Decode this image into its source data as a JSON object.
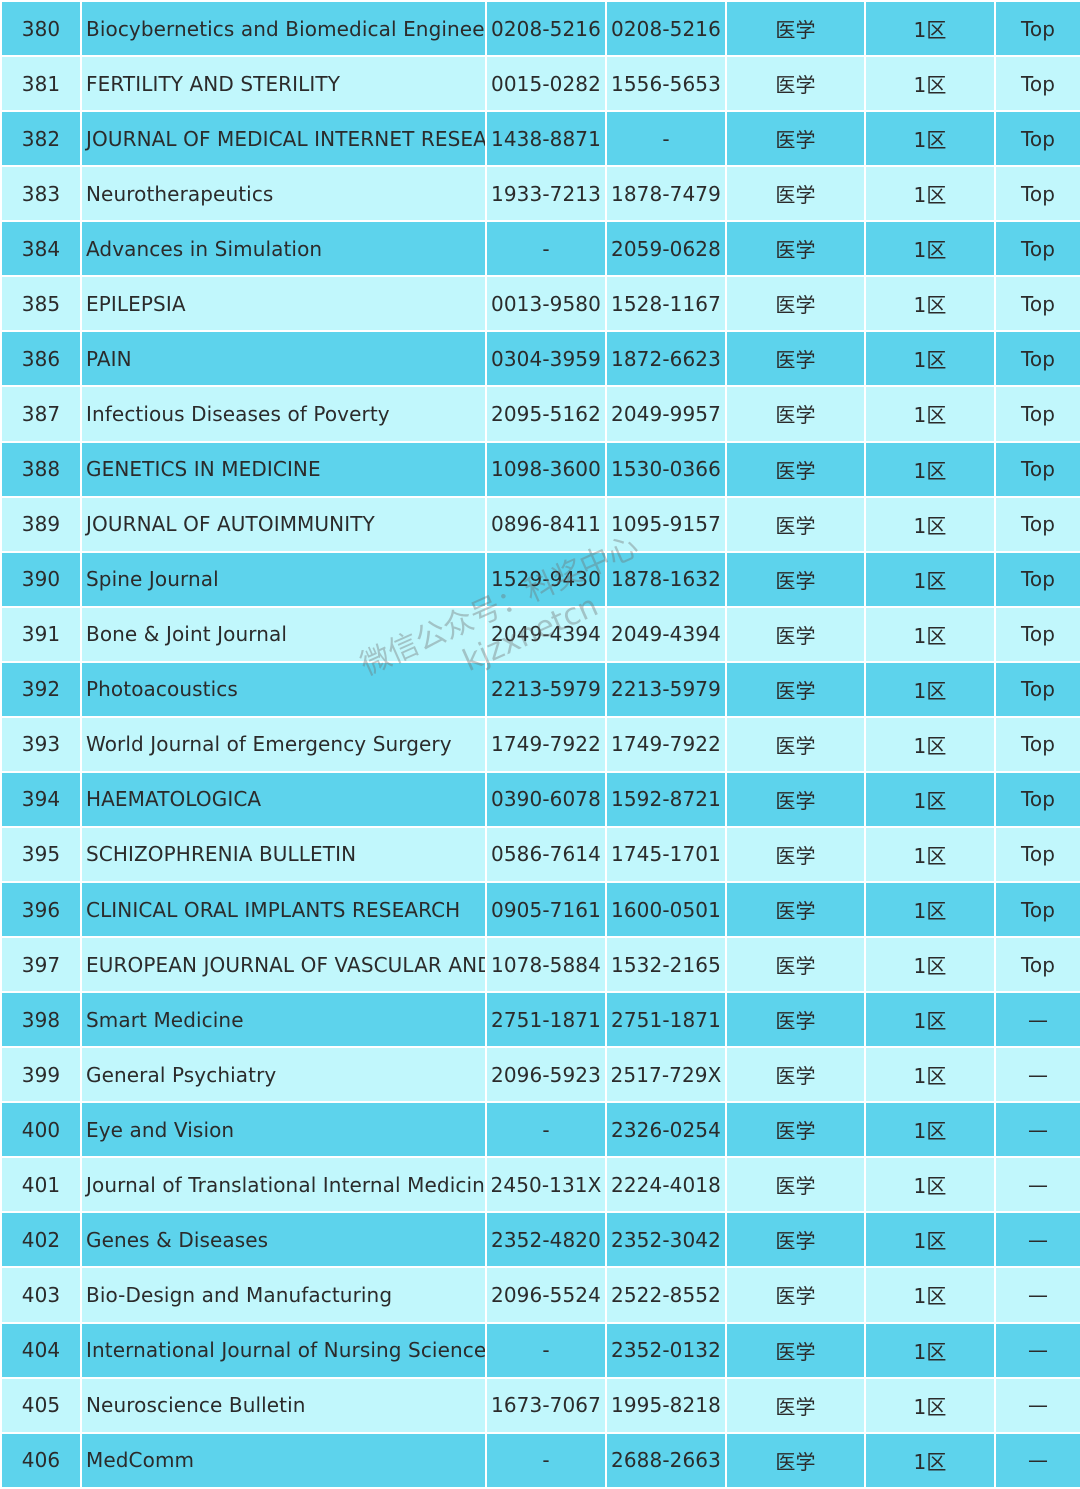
{
  "rows": [
    {
      "no": "380",
      "name": "Biocybernetics and Biomedical Engineering",
      "issn": "0208-5216",
      "eissn": "0208-5216",
      "category": "医学",
      "zone": "1区",
      "top": "Top"
    },
    {
      "no": "381",
      "name": "FERTILITY AND STERILITY",
      "issn": "0015-0282",
      "eissn": "1556-5653",
      "category": "医学",
      "zone": "1区",
      "top": "Top"
    },
    {
      "no": "382",
      "name": "JOURNAL OF MEDICAL INTERNET RESEARCH",
      "issn": "1438-8871",
      "eissn": "-",
      "category": "医学",
      "zone": "1区",
      "top": "Top"
    },
    {
      "no": "383",
      "name": "Neurotherapeutics",
      "issn": "1933-7213",
      "eissn": "1878-7479",
      "category": "医学",
      "zone": "1区",
      "top": "Top"
    },
    {
      "no": "384",
      "name": "Advances in Simulation",
      "issn": "-",
      "eissn": "2059-0628",
      "category": "医学",
      "zone": "1区",
      "top": "Top"
    },
    {
      "no": "385",
      "name": "EPILEPSIA",
      "issn": "0013-9580",
      "eissn": "1528-1167",
      "category": "医学",
      "zone": "1区",
      "top": "Top"
    },
    {
      "no": "386",
      "name": "PAIN",
      "issn": "0304-3959",
      "eissn": "1872-6623",
      "category": "医学",
      "zone": "1区",
      "top": "Top"
    },
    {
      "no": "387",
      "name": "Infectious Diseases of Poverty",
      "issn": "2095-5162",
      "eissn": "2049-9957",
      "category": "医学",
      "zone": "1区",
      "top": "Top"
    },
    {
      "no": "388",
      "name": "GENETICS IN MEDICINE",
      "issn": "1098-3600",
      "eissn": "1530-0366",
      "category": "医学",
      "zone": "1区",
      "top": "Top"
    },
    {
      "no": "389",
      "name": "JOURNAL OF AUTOIMMUNITY",
      "issn": "0896-8411",
      "eissn": "1095-9157",
      "category": "医学",
      "zone": "1区",
      "top": "Top"
    },
    {
      "no": "390",
      "name": "Spine Journal",
      "issn": "1529-9430",
      "eissn": "1878-1632",
      "category": "医学",
      "zone": "1区",
      "top": "Top"
    },
    {
      "no": "391",
      "name": "Bone & Joint Journal",
      "issn": "2049-4394",
      "eissn": "2049-4394",
      "category": "医学",
      "zone": "1区",
      "top": "Top"
    },
    {
      "no": "392",
      "name": "Photoacoustics",
      "issn": "2213-5979",
      "eissn": "2213-5979",
      "category": "医学",
      "zone": "1区",
      "top": "Top"
    },
    {
      "no": "393",
      "name": "World Journal of Emergency Surgery",
      "issn": "1749-7922",
      "eissn": "1749-7922",
      "category": "医学",
      "zone": "1区",
      "top": "Top"
    },
    {
      "no": "394",
      "name": "HAEMATOLOGICA",
      "issn": "0390-6078",
      "eissn": "1592-8721",
      "category": "医学",
      "zone": "1区",
      "top": "Top"
    },
    {
      "no": "395",
      "name": "SCHIZOPHRENIA BULLETIN",
      "issn": "0586-7614",
      "eissn": "1745-1701",
      "category": "医学",
      "zone": "1区",
      "top": "Top"
    },
    {
      "no": "396",
      "name": "CLINICAL ORAL IMPLANTS RESEARCH",
      "issn": "0905-7161",
      "eissn": "1600-0501",
      "category": "医学",
      "zone": "1区",
      "top": "Top"
    },
    {
      "no": "397",
      "name": "EUROPEAN JOURNAL OF VASCULAR AND ENDOVASCULAR SURGERY",
      "issn": "1078-5884",
      "eissn": "1532-2165",
      "category": "医学",
      "zone": "1区",
      "top": "Top"
    },
    {
      "no": "398",
      "name": "Smart Medicine",
      "issn": "2751-1871",
      "eissn": "2751-1871",
      "category": "医学",
      "zone": "1区",
      "top": "—"
    },
    {
      "no": "399",
      "name": "General Psychiatry",
      "issn": "2096-5923",
      "eissn": "2517-729X",
      "category": "医学",
      "zone": "1区",
      "top": "—"
    },
    {
      "no": "400",
      "name": "Eye and Vision",
      "issn": "-",
      "eissn": "2326-0254",
      "category": "医学",
      "zone": "1区",
      "top": "—"
    },
    {
      "no": "401",
      "name": "Journal of Translational Internal Medicine",
      "issn": "2450-131X",
      "eissn": "2224-4018",
      "category": "医学",
      "zone": "1区",
      "top": "—"
    },
    {
      "no": "402",
      "name": "Genes & Diseases",
      "issn": "2352-4820",
      "eissn": "2352-3042",
      "category": "医学",
      "zone": "1区",
      "top": "—"
    },
    {
      "no": "403",
      "name": "Bio-Design and Manufacturing",
      "issn": "2096-5524",
      "eissn": "2522-8552",
      "category": "医学",
      "zone": "1区",
      "top": "—"
    },
    {
      "no": "404",
      "name": "International Journal of Nursing Sciences",
      "issn": "-",
      "eissn": "2352-0132",
      "category": "医学",
      "zone": "1区",
      "top": "—"
    },
    {
      "no": "405",
      "name": "Neuroscience Bulletin",
      "issn": "1673-7067",
      "eissn": "1995-8218",
      "category": "医学",
      "zone": "1区",
      "top": "—"
    },
    {
      "no": "406",
      "name": "MedComm",
      "issn": "-",
      "eissn": "2688-2663",
      "category": "医学",
      "zone": "1区",
      "top": "—"
    }
  ],
  "watermark": {
    "line1": "微信公众号：科奖中心",
    "line2": "kjzxnetcn"
  },
  "colors": {
    "row_dark": "#5dd3ec",
    "row_light": "#c1f7fc",
    "cell_border": "#ffffff",
    "text": "#2b2b2b"
  }
}
